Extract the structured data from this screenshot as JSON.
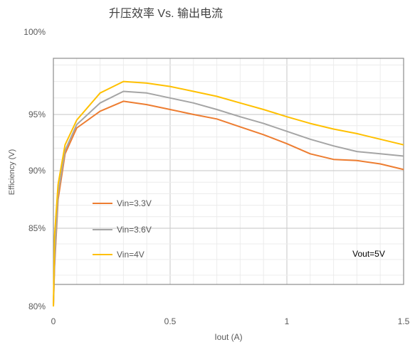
{
  "chart_data": {
    "type": "line",
    "title": "升压效率 Vs. 输出电流",
    "xlabel": "Iout (A)",
    "ylabel": "Efficiency (V)",
    "xlim": [
      0,
      1.5
    ],
    "ylim": [
      80,
      100
    ],
    "x_ticks": [
      "0",
      "0.5",
      "1",
      "1.5"
    ],
    "y_ticks": [
      "80%",
      "85%",
      "90%",
      "95%",
      "100%"
    ],
    "grid": true,
    "legend_position": "inside-left",
    "annotation": "Vout=5V",
    "series": [
      {
        "name": "Vin=3.3V",
        "color": "#ED7D31",
        "points": [
          [
            0.0,
            80.0
          ],
          [
            0.005,
            82.5
          ],
          [
            0.02,
            87.5
          ],
          [
            0.05,
            91.5
          ],
          [
            0.1,
            93.8
          ],
          [
            0.2,
            95.2
          ],
          [
            0.3,
            95.8
          ],
          [
            0.4,
            95.6
          ],
          [
            0.5,
            95.3
          ],
          [
            0.6,
            95.0
          ],
          [
            0.7,
            94.6
          ],
          [
            0.8,
            93.9
          ],
          [
            0.9,
            93.2
          ],
          [
            1.0,
            92.4
          ],
          [
            1.1,
            91.5
          ],
          [
            1.2,
            91.0
          ],
          [
            1.3,
            90.9
          ],
          [
            1.4,
            90.6
          ],
          [
            1.5,
            90.1
          ]
        ]
      },
      {
        "name": "Vin=3.6V",
        "color": "#A5A5A5",
        "points": [
          [
            0.0,
            80.0
          ],
          [
            0.005,
            82.8
          ],
          [
            0.02,
            88.0
          ],
          [
            0.05,
            91.8
          ],
          [
            0.1,
            94.1
          ],
          [
            0.2,
            95.7
          ],
          [
            0.3,
            96.4
          ],
          [
            0.4,
            96.3
          ],
          [
            0.5,
            96.0
          ],
          [
            0.6,
            95.7
          ],
          [
            0.7,
            95.3
          ],
          [
            0.8,
            94.8
          ],
          [
            0.9,
            94.2
          ],
          [
            1.0,
            93.5
          ],
          [
            1.1,
            92.8
          ],
          [
            1.2,
            92.2
          ],
          [
            1.3,
            91.7
          ],
          [
            1.4,
            91.5
          ],
          [
            1.5,
            91.3
          ]
        ]
      },
      {
        "name": "Vin=4V",
        "color": "#FFC000",
        "points": [
          [
            0.0,
            80.0
          ],
          [
            0.005,
            84.5
          ],
          [
            0.02,
            88.8
          ],
          [
            0.05,
            92.3
          ],
          [
            0.1,
            94.5
          ],
          [
            0.2,
            96.3
          ],
          [
            0.3,
            97.0
          ],
          [
            0.4,
            96.9
          ],
          [
            0.5,
            96.7
          ],
          [
            0.6,
            96.4
          ],
          [
            0.7,
            96.1
          ],
          [
            0.8,
            95.7
          ],
          [
            0.9,
            95.3
          ],
          [
            1.0,
            94.8
          ],
          [
            1.1,
            94.2
          ],
          [
            1.2,
            93.7
          ],
          [
            1.3,
            93.3
          ],
          [
            1.4,
            92.8
          ],
          [
            1.5,
            92.3
          ]
        ]
      }
    ]
  }
}
